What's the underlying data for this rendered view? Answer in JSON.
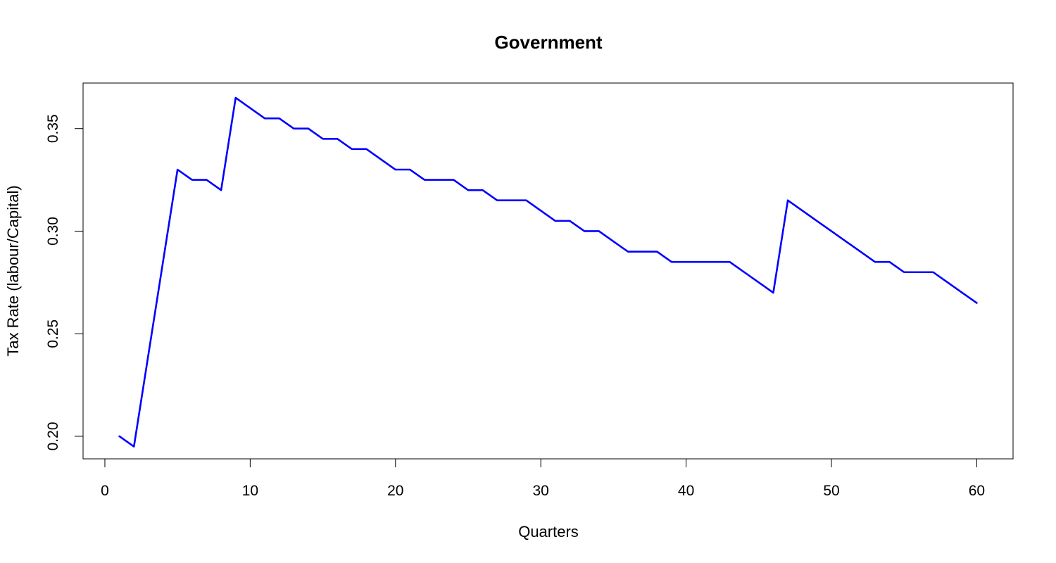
{
  "chart_data": {
    "type": "line",
    "title": "Government",
    "xlabel": "Quarters",
    "ylabel": "Tax Rate (labour/Capital)",
    "xlim": [
      -1.5,
      62.5
    ],
    "ylim": [
      0.189,
      0.3722
    ],
    "x_ticks": [
      0,
      10,
      20,
      30,
      40,
      50,
      60
    ],
    "y_ticks": [
      0.2,
      0.25,
      0.3,
      0.35
    ],
    "y_tick_labels": [
      "0.20",
      "0.25",
      "0.30",
      "0.35"
    ],
    "grid": false,
    "series": [
      {
        "color": "#0000ff",
        "x": [
          1,
          2,
          3,
          4,
          5,
          6,
          7,
          8,
          9,
          10,
          11,
          12,
          13,
          14,
          15,
          16,
          17,
          18,
          19,
          20,
          21,
          22,
          23,
          24,
          25,
          26,
          27,
          28,
          29,
          30,
          31,
          32,
          33,
          34,
          35,
          36,
          37,
          38,
          39,
          40,
          41,
          42,
          43,
          44,
          45,
          46,
          47,
          48,
          49,
          50,
          51,
          52,
          53,
          54,
          55,
          56,
          57,
          58,
          59,
          60
        ],
        "y": [
          0.2,
          0.195,
          0.24,
          0.285,
          0.33,
          0.325,
          0.325,
          0.32,
          0.365,
          0.36,
          0.355,
          0.355,
          0.35,
          0.35,
          0.345,
          0.345,
          0.34,
          0.34,
          0.335,
          0.33,
          0.33,
          0.325,
          0.325,
          0.325,
          0.32,
          0.32,
          0.315,
          0.315,
          0.315,
          0.31,
          0.305,
          0.305,
          0.3,
          0.3,
          0.295,
          0.29,
          0.29,
          0.29,
          0.285,
          0.285,
          0.285,
          0.285,
          0.285,
          0.28,
          0.275,
          0.27,
          0.315,
          0.31,
          0.305,
          0.3,
          0.295,
          0.29,
          0.285,
          0.285,
          0.28,
          0.28,
          0.28,
          0.275,
          0.27,
          0.265
        ]
      }
    ]
  }
}
